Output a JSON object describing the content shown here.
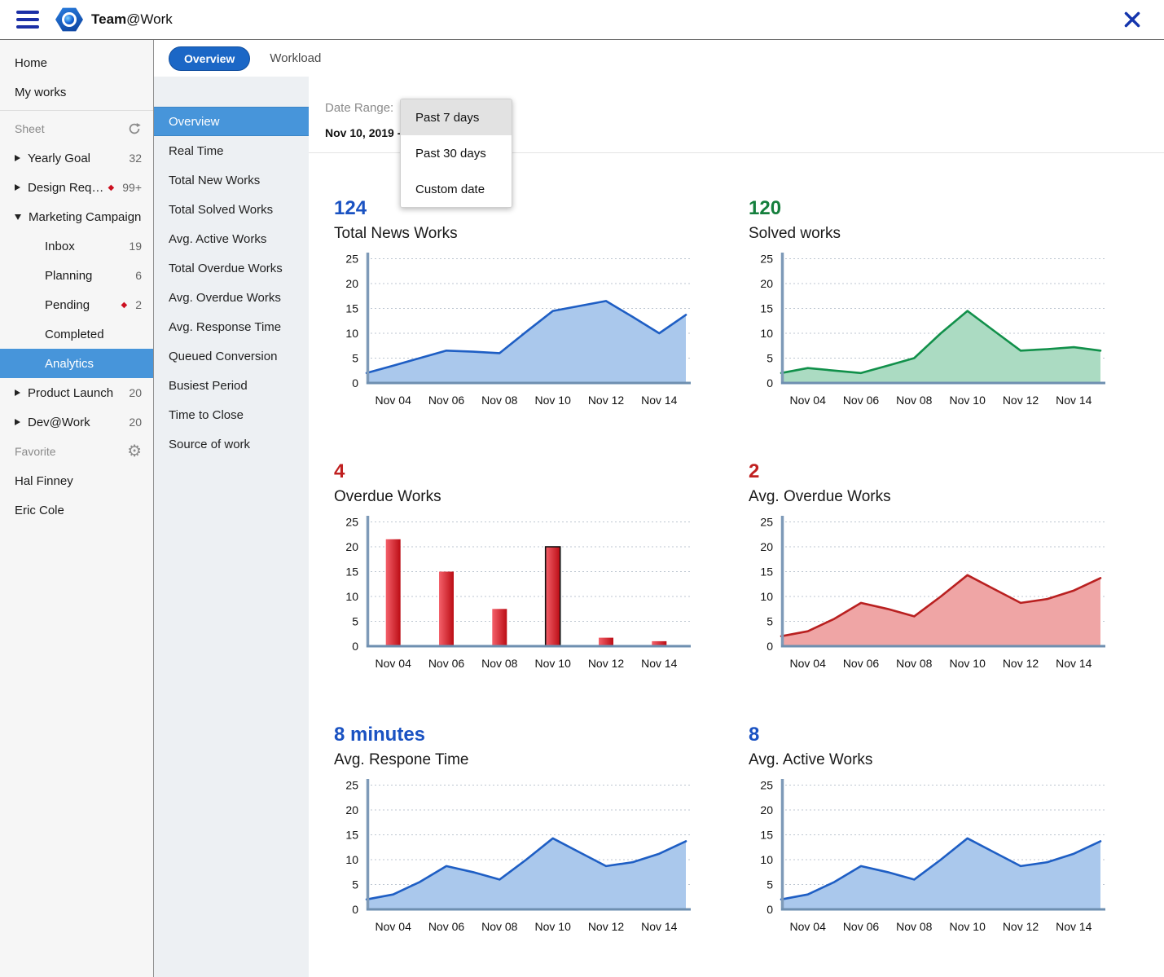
{
  "header": {
    "app_name_bold": "Team",
    "app_name_rest": "@Work",
    "icons": [
      "hamburger-menu-icon",
      "app-logo-icon",
      "close-icon"
    ]
  },
  "tabs": [
    {
      "label": "Overview",
      "active": true
    },
    {
      "label": "Workload",
      "active": false
    }
  ],
  "sidebar": {
    "items": [
      {
        "label": "Home",
        "type": "plain"
      },
      {
        "label": "My works",
        "type": "plain"
      },
      {
        "type": "divider"
      },
      {
        "label": "Sheet",
        "type": "section",
        "icon": "refresh-icon"
      },
      {
        "label": "Yearly Goal",
        "type": "group",
        "state": "collapsed",
        "count": "32"
      },
      {
        "label": "Design Reque…",
        "type": "group",
        "state": "collapsed",
        "count": "99+",
        "alert": true
      },
      {
        "label": "Marketing Campaign",
        "type": "group",
        "state": "expanded"
      },
      {
        "label": "Inbox",
        "type": "child",
        "count": "19"
      },
      {
        "label": "Planning",
        "type": "child",
        "count": "6"
      },
      {
        "label": "Pending",
        "type": "child",
        "count": "2",
        "alert": true
      },
      {
        "label": "Completed",
        "type": "child"
      },
      {
        "label": "Analytics",
        "type": "child",
        "selected": true
      },
      {
        "label": "Product Launch",
        "type": "group",
        "state": "collapsed",
        "count": "20"
      },
      {
        "label": "Dev@Work",
        "type": "group",
        "state": "collapsed",
        "count": "20"
      },
      {
        "label": "Favorite",
        "type": "section",
        "icon": "gear-icon"
      },
      {
        "label": "Hal Finney",
        "type": "plain"
      },
      {
        "label": "Eric Cole",
        "type": "plain"
      }
    ]
  },
  "menu": {
    "items": [
      {
        "label": "Overview",
        "selected": true
      },
      {
        "label": "Real Time"
      },
      {
        "label": "Total New Works"
      },
      {
        "label": "Total Solved Works"
      },
      {
        "label": "Avg. Active Works"
      },
      {
        "label": "Total Overdue Works"
      },
      {
        "label": "Avg. Overdue Works"
      },
      {
        "label": "Avg. Response Time"
      },
      {
        "label": "Queued Conversion"
      },
      {
        "label": "Busiest Period"
      },
      {
        "label": "Time to Close"
      },
      {
        "label": "Source of work"
      }
    ]
  },
  "main": {
    "date_range_label": "Date Range:",
    "date_value": "Nov 10, 2019  -",
    "dropdown": {
      "options": [
        "Past 7 days",
        "Past 30 days",
        "Custom date"
      ],
      "highlighted": "Past 7 days"
    }
  },
  "colors": {
    "header_icon_blue": "#1b2fa6",
    "active_tab_blue": "#1b67c6",
    "selected_row_blue": "#4795da",
    "stat_blue": "#1a52c2",
    "stat_green": "#157f3d",
    "stat_red": "#c02020",
    "alert_red": "#cc1020",
    "axis_steel_blue": "#7e9ab8"
  },
  "chart_data": [
    {
      "type": "area",
      "stat": "124",
      "stat_color": "#1a52c2",
      "title": "Total News Works",
      "x": [
        "Nov 03",
        "Nov 04",
        "Nov 05",
        "Nov 06",
        "Nov 07",
        "Nov 08",
        "Nov 09",
        "Nov 10",
        "Nov 11",
        "Nov 12",
        "Nov 13",
        "Nov 14",
        "Nov 15"
      ],
      "values": [
        2,
        3.5,
        5,
        6.5,
        6.3,
        6,
        10.3,
        14.5,
        15.5,
        16.5,
        13.3,
        10,
        13.7
      ],
      "x_ticks": [
        "Nov 04",
        "Nov 06",
        "Nov 08",
        "Nov 10",
        "Nov 12",
        "Nov 14"
      ],
      "y_ticks": [
        0,
        5,
        10,
        15,
        20,
        25
      ],
      "ylim": [
        0,
        27
      ],
      "grid": true,
      "line_color": "#1e5ec4",
      "fill_color": "#aac8ec"
    },
    {
      "type": "area",
      "stat": "120",
      "stat_color": "#157f3d",
      "title": "Solved works",
      "x": [
        "Nov 03",
        "Nov 04",
        "Nov 05",
        "Nov 06",
        "Nov 07",
        "Nov 08",
        "Nov 09",
        "Nov 10",
        "Nov 11",
        "Nov 12",
        "Nov 13",
        "Nov 14",
        "Nov 15"
      ],
      "values": [
        2,
        3,
        2.5,
        2,
        3.5,
        5,
        10,
        14.5,
        10.5,
        6.5,
        6.8,
        7.2,
        6.5
      ],
      "x_ticks": [
        "Nov 04",
        "Nov 06",
        "Nov 08",
        "Nov 10",
        "Nov 12",
        "Nov 14"
      ],
      "y_ticks": [
        0,
        5,
        10,
        15,
        20,
        25
      ],
      "ylim": [
        0,
        27
      ],
      "grid": true,
      "line_color": "#11904a",
      "fill_color": "#abdbc2"
    },
    {
      "type": "bar",
      "stat": "4",
      "stat_color": "#c02020",
      "title": "Overdue Works",
      "categories": [
        "Nov 04",
        "Nov 06",
        "Nov 08",
        "Nov 10",
        "Nov 12",
        "Nov 14"
      ],
      "values": [
        21.5,
        15,
        7.5,
        20,
        1.7,
        1
      ],
      "highlighted_bar": "Nov 10",
      "y_ticks": [
        0,
        5,
        10,
        15,
        20,
        25
      ],
      "ylim": [
        0,
        27
      ],
      "grid": true,
      "bar_color_light": "#f4606a",
      "bar_color_dark": "#bb0c14",
      "highlight_outline": "#111111"
    },
    {
      "type": "area",
      "stat": "2",
      "stat_color": "#c02020",
      "title": "Avg. Overdue Works",
      "x": [
        "Nov 03",
        "Nov 04",
        "Nov 05",
        "Nov 06",
        "Nov 07",
        "Nov 08",
        "Nov 09",
        "Nov 10",
        "Nov 11",
        "Nov 12",
        "Nov 13",
        "Nov 14",
        "Nov 15"
      ],
      "values": [
        2,
        3,
        5.5,
        8.7,
        7.5,
        6,
        10,
        14.3,
        11.5,
        8.7,
        9.5,
        11.2,
        13.7
      ],
      "x_ticks": [
        "Nov 04",
        "Nov 06",
        "Nov 08",
        "Nov 10",
        "Nov 12",
        "Nov 14"
      ],
      "y_ticks": [
        0,
        5,
        10,
        15,
        20,
        25
      ],
      "ylim": [
        0,
        27
      ],
      "grid": true,
      "line_color": "#b92020",
      "fill_color": "#efa5a5"
    },
    {
      "type": "area",
      "stat": "8 minutes",
      "stat_color": "#1a52c2",
      "title": "Avg. Respone Time",
      "x": [
        "Nov 03",
        "Nov 04",
        "Nov 05",
        "Nov 06",
        "Nov 07",
        "Nov 08",
        "Nov 09",
        "Nov 10",
        "Nov 11",
        "Nov 12",
        "Nov 13",
        "Nov 14",
        "Nov 15"
      ],
      "values": [
        2,
        3,
        5.5,
        8.7,
        7.5,
        6,
        10,
        14.3,
        11.5,
        8.7,
        9.5,
        11.2,
        13.7
      ],
      "x_ticks": [
        "Nov 04",
        "Nov 06",
        "Nov 08",
        "Nov 10",
        "Nov 12",
        "Nov 14"
      ],
      "y_ticks": [
        0,
        5,
        10,
        15,
        20,
        25
      ],
      "ylim": [
        0,
        27
      ],
      "grid": true,
      "line_color": "#1e5ec4",
      "fill_color": "#aac8ec"
    },
    {
      "type": "area",
      "stat": "8",
      "stat_color": "#1a52c2",
      "title": "Avg. Active Works",
      "x": [
        "Nov 03",
        "Nov 04",
        "Nov 05",
        "Nov 06",
        "Nov 07",
        "Nov 08",
        "Nov 09",
        "Nov 10",
        "Nov 11",
        "Nov 12",
        "Nov 13",
        "Nov 14",
        "Nov 15"
      ],
      "values": [
        2,
        3,
        5.5,
        8.7,
        7.5,
        6,
        10,
        14.3,
        11.5,
        8.7,
        9.5,
        11.2,
        13.7
      ],
      "x_ticks": [
        "Nov 04",
        "Nov 06",
        "Nov 08",
        "Nov 10",
        "Nov 12",
        "Nov 14"
      ],
      "y_ticks": [
        0,
        5,
        10,
        15,
        20,
        25
      ],
      "ylim": [
        0,
        27
      ],
      "grid": true,
      "line_color": "#1e5ec4",
      "fill_color": "#aac8ec"
    }
  ]
}
